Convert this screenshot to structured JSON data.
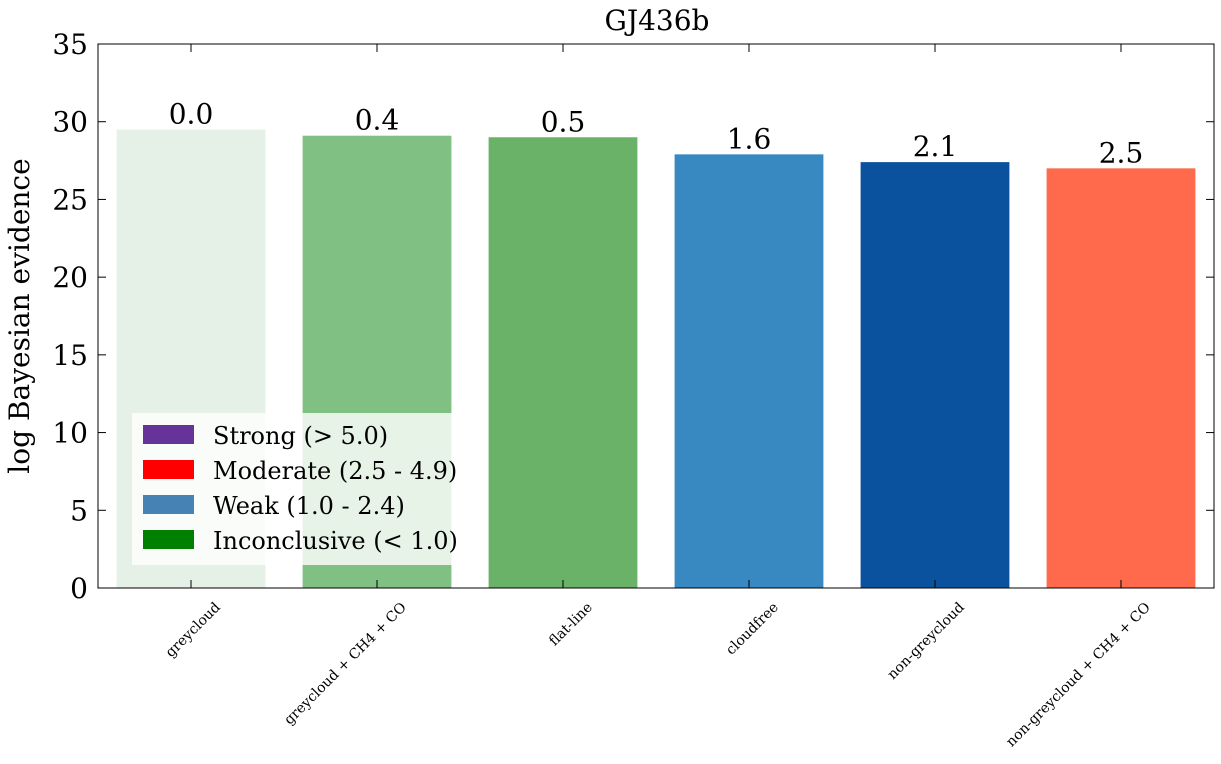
{
  "chart_data": {
    "type": "bar",
    "title": "GJ436b",
    "ylabel": "log Bayesian evidence",
    "xlabel": "",
    "ylim": [
      0,
      35
    ],
    "yticks": [
      0,
      5,
      10,
      15,
      20,
      25,
      30,
      35
    ],
    "categories": [
      "greycloud",
      "greycloud + CH4 + CO",
      "flat-line",
      "cloudfree",
      "non-greycloud",
      "non-greycloud + CH4 + CO"
    ],
    "values": [
      29.5,
      29.1,
      29.0,
      27.9,
      27.4,
      27.0
    ],
    "bar_labels": [
      "0.0",
      "0.4",
      "0.5",
      "1.6",
      "2.1",
      "2.5"
    ],
    "bar_colors": [
      "#e5f1e6",
      "#80c082",
      "#69b268",
      "#3888c1",
      "#0b529e",
      "#fe6a4b"
    ],
    "legend": {
      "placement": "lower-left",
      "entries": [
        {
          "label": "Strong (> 5.0)",
          "color": "#663399"
        },
        {
          "label": "Moderate (2.5 - 4.9)",
          "color": "#ff0000"
        },
        {
          "label": "Weak (1.0 - 2.4)",
          "color": "#4682b4"
        },
        {
          "label": "Inconclusive (< 1.0)",
          "color": "#008000"
        }
      ]
    },
    "grid": false
  }
}
